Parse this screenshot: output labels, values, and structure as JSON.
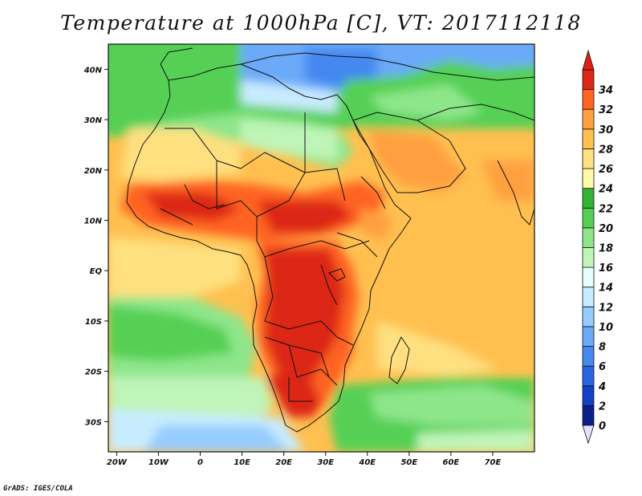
{
  "title": "Temperature at 1000hPa [C], VT: 2017112118",
  "credit": "GrADS: IGES/COLA",
  "map": {
    "lon_range": [
      -22,
      80
    ],
    "lat_range": [
      -36,
      45
    ],
    "lon_ticks": [
      {
        "value": -20,
        "label": "20W"
      },
      {
        "value": -10,
        "label": "10W"
      },
      {
        "value": 0,
        "label": "0"
      },
      {
        "value": 10,
        "label": "10E"
      },
      {
        "value": 20,
        "label": "20E"
      },
      {
        "value": 30,
        "label": "30E"
      },
      {
        "value": 40,
        "label": "40E"
      },
      {
        "value": 50,
        "label": "50E"
      },
      {
        "value": 60,
        "label": "60E"
      },
      {
        "value": 70,
        "label": "70E"
      }
    ],
    "lat_ticks": [
      {
        "value": 40,
        "label": "40N"
      },
      {
        "value": 30,
        "label": "30N"
      },
      {
        "value": 20,
        "label": "20N"
      },
      {
        "value": 10,
        "label": "10N"
      },
      {
        "value": 0,
        "label": "EQ"
      },
      {
        "value": -10,
        "label": "10S"
      },
      {
        "value": -20,
        "label": "20S"
      },
      {
        "value": -30,
        "label": "30S"
      }
    ]
  },
  "colorbar": {
    "levels": [
      "0",
      "2",
      "4",
      "6",
      "8",
      "10",
      "12",
      "14",
      "16",
      "18",
      "20",
      "22",
      "24",
      "26",
      "28",
      "30",
      "32",
      "34"
    ],
    "colors": [
      "#0a1e8c",
      "#1440c8",
      "#2a64e0",
      "#4488f0",
      "#6aaaf8",
      "#96ccff",
      "#c8ecff",
      "#e6fffa",
      "#bff5b8",
      "#8ee68a",
      "#55d055",
      "#32b432",
      "#fffaa8",
      "#ffe080",
      "#ffc050",
      "#ffa040",
      "#ff6420",
      "#dc2814"
    ],
    "under_color": "#e8e0ff",
    "over_color": "#e01e14"
  }
}
